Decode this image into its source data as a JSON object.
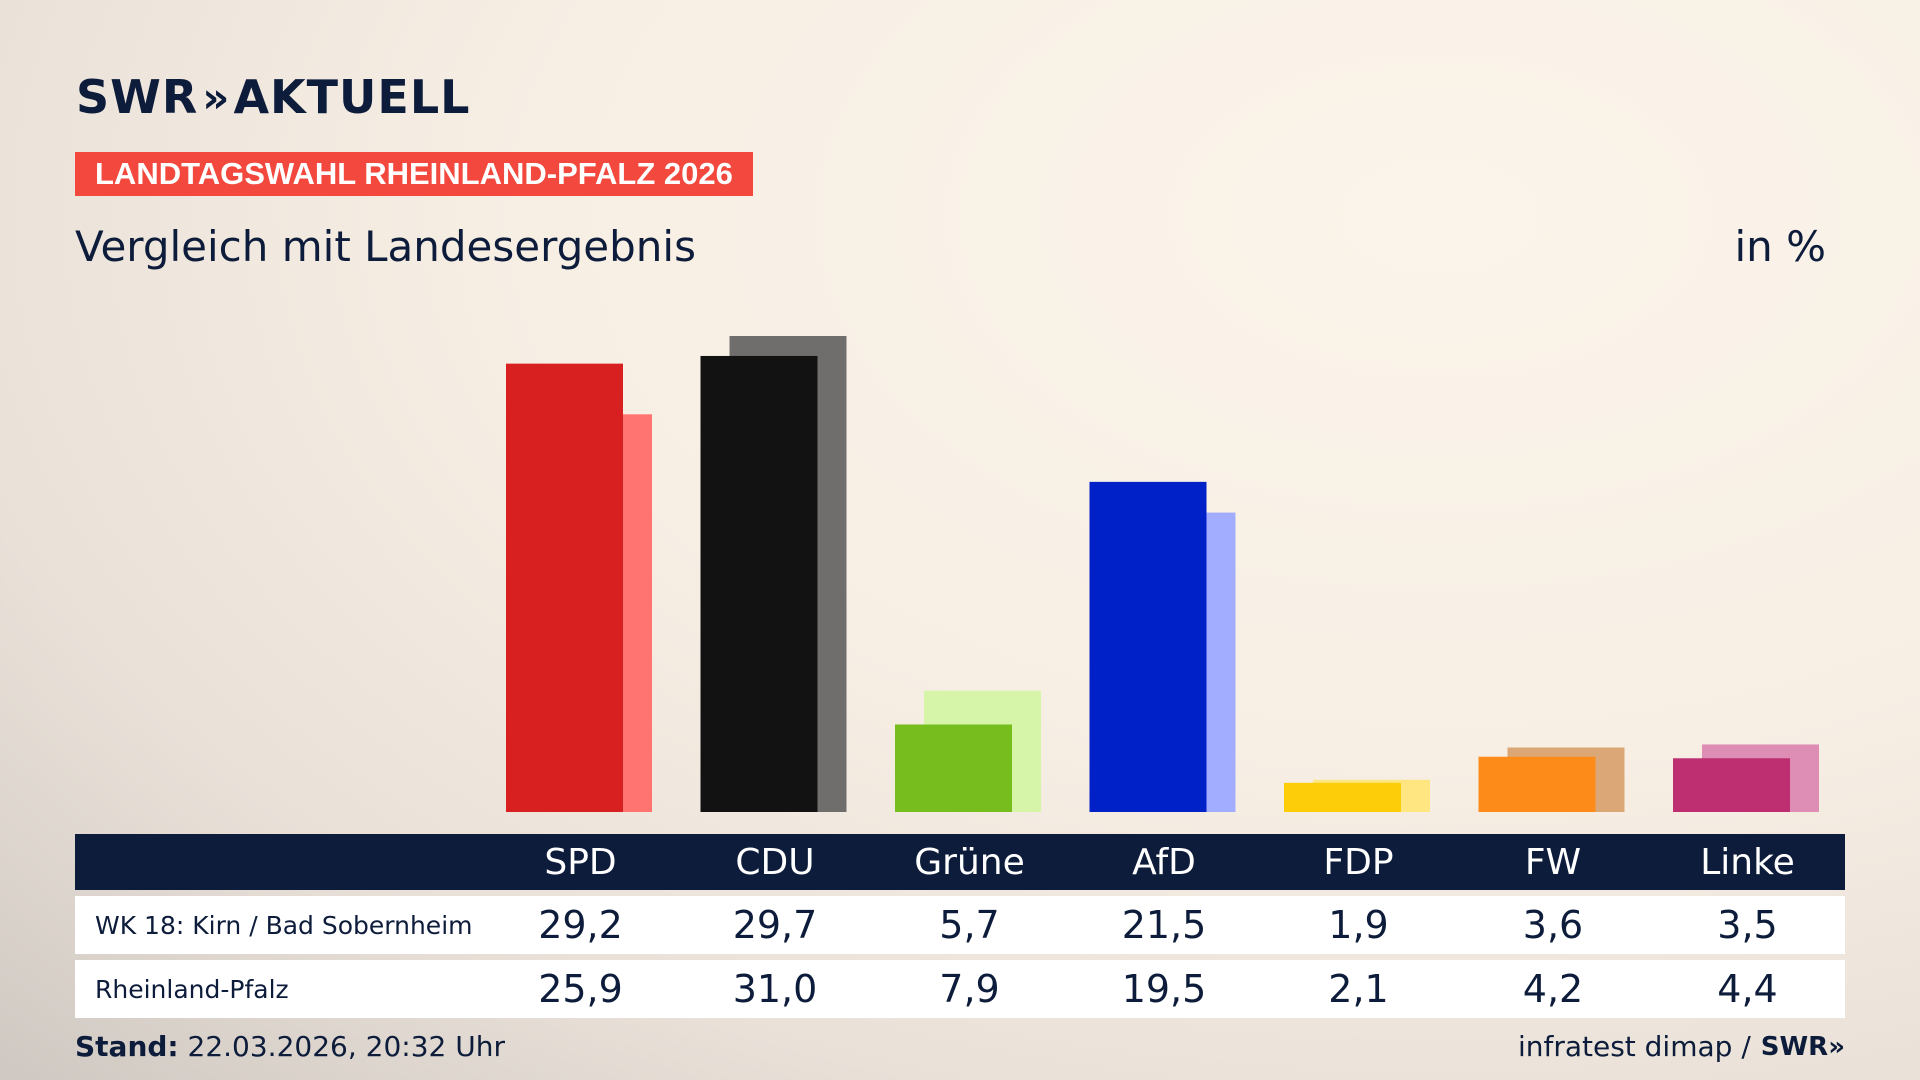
{
  "header": {
    "brand": "SWR",
    "brand_chevrons": "»",
    "brand_suffix": "AKTUELL",
    "badge": "LANDTAGSWAHL RHEINLAND-PFALZ 2026",
    "subtitle": "Vergleich mit Landesergebnis",
    "unit": "in %"
  },
  "chart_data": {
    "type": "bar",
    "categories": [
      "SPD",
      "CDU",
      "Grüne",
      "AfD",
      "FDP",
      "FW",
      "Linke"
    ],
    "series": [
      {
        "name": "WK 18: Kirn / Bad Sobernheim",
        "values": [
          29.2,
          29.7,
          5.7,
          21.5,
          1.9,
          3.6,
          3.5
        ]
      },
      {
        "name": "Rheinland-Pfalz",
        "values": [
          25.9,
          31.0,
          7.9,
          19.5,
          2.1,
          4.2,
          4.4
        ]
      }
    ],
    "value_labels": [
      [
        "29,2",
        "29,7",
        "5,7",
        "21,5",
        "1,9",
        "3,6",
        "3,5"
      ],
      [
        "25,9",
        "31,0",
        "7,9",
        "19,5",
        "2,1",
        "4,2",
        "4,4"
      ]
    ],
    "colors_primary": [
      "#d7201f",
      "#121212",
      "#78bd1e",
      "#0020c8",
      "#fecd0a",
      "#fc8b1a",
      "#bd2f70"
    ],
    "colors_secondary": [
      "#ff7470",
      "#706e6c",
      "#d6f5a8",
      "#a3adff",
      "#ffe680",
      "#dba776",
      "#de8db4"
    ],
    "ylim": [
      0,
      31.0
    ],
    "grid": false,
    "legend": "table-below"
  },
  "footer": {
    "stand_label": "Stand:",
    "stand_value": " 22.03.2026, 20:32 Uhr",
    "source": "infratest dimap /",
    "source_logo": "SWR»"
  }
}
